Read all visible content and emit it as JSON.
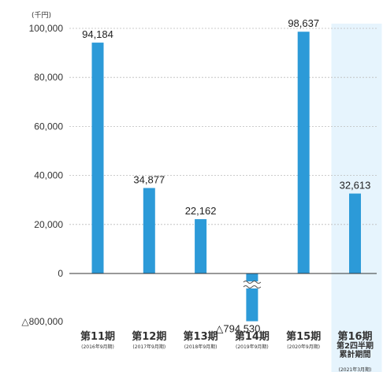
{
  "chart_data": {
    "type": "bar",
    "unit_label": "(千円)",
    "categories": [
      "第11期",
      "第12期",
      "第13期",
      "第14期",
      "第15期",
      "第16期"
    ],
    "category_sublabels": [
      [
        "(2016年9月期)"
      ],
      [
        "(2017年9月期)"
      ],
      [
        "(2018年9月期)"
      ],
      [
        "(2019年9月期)"
      ],
      [
        "(2020年9月期)"
      ],
      [
        "第2四半期",
        "累計期間",
        "(2021年3月期)"
      ]
    ],
    "values": [
      94184,
      34877,
      22162,
      -794530,
      98637,
      32613
    ],
    "value_labels": [
      "94,184",
      "34,877",
      "22,162",
      "△794,530",
      "98,637",
      "32,613"
    ],
    "y_ticks": [
      "100,000",
      "80,000",
      "60,000",
      "40,000",
      "20,000",
      "0",
      "△800,000"
    ],
    "y_tick_values": [
      100000,
      80000,
      60000,
      40000,
      20000,
      0,
      -800000
    ],
    "ylim": [
      -800000,
      100000
    ],
    "axis_break": true,
    "highlighted_category": "第16期",
    "grid": true,
    "colors": {
      "bar": "#2c9ad8",
      "highlight_band": "#e6f4fd",
      "grid": "#bbbbbb",
      "axis": "#333333"
    }
  }
}
